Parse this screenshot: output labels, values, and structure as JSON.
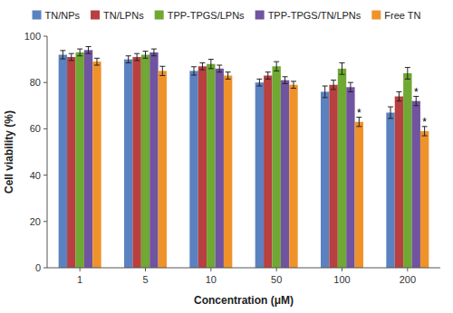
{
  "chart_data": {
    "type": "bar",
    "categories": [
      "1",
      "5",
      "10",
      "50",
      "100",
      "200"
    ],
    "series": [
      {
        "name": "TN/NPs",
        "color": "#5b82c0",
        "values": [
          92,
          90,
          85,
          80,
          76,
          67
        ],
        "errors": [
          1.8,
          1.5,
          1.8,
          1.5,
          2.5,
          2.5
        ]
      },
      {
        "name": "TN/LPNs",
        "color": "#b84040",
        "values": [
          91,
          91,
          87,
          83,
          79,
          74
        ],
        "errors": [
          1.5,
          1.5,
          1.5,
          1.5,
          2.0,
          2.0
        ]
      },
      {
        "name": "TPP-TPGS/LPNs",
        "color": "#6fa832",
        "values": [
          93,
          92,
          88,
          87,
          86,
          84
        ],
        "errors": [
          1.5,
          1.5,
          2.0,
          2.0,
          2.5,
          2.5
        ]
      },
      {
        "name": "TPP-TPGS/TN/LPNs",
        "color": "#7054a0",
        "values": [
          94,
          93,
          86,
          81,
          78,
          72
        ],
        "errors": [
          1.5,
          1.5,
          1.5,
          1.5,
          2.0,
          2.0
        ]
      },
      {
        "name": "Free TN",
        "color": "#f0922a",
        "values": [
          89,
          85,
          83,
          79,
          63,
          59
        ],
        "errors": [
          1.5,
          2.0,
          1.5,
          1.5,
          2.0,
          2.0
        ]
      }
    ],
    "x_label": "Concentration (μM)",
    "y_label": "Cell viability (%)",
    "ylim": [
      0,
      100
    ],
    "yticks": [
      0,
      20,
      40,
      60,
      80,
      100
    ],
    "grid": false,
    "legend": "top",
    "annotations": [
      {
        "text": "*",
        "series": "Free TN",
        "category": "100"
      },
      {
        "text": "*",
        "series": "Free TN",
        "category": "200"
      },
      {
        "text": "*",
        "series": "TPP-TPGS/TN/LPNs",
        "category": "200"
      }
    ]
  }
}
